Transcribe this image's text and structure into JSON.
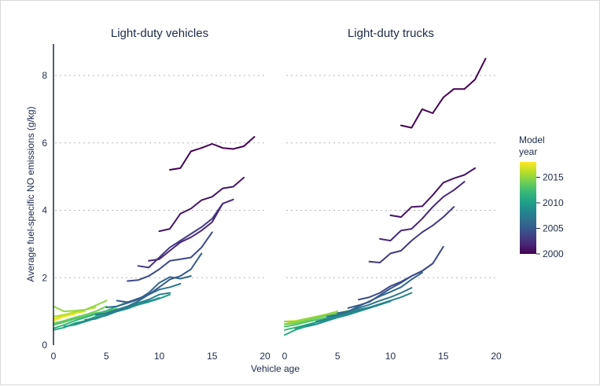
{
  "chart_data": {
    "type": "line",
    "ylabel": "Average fuel-specific NO emissions (g/kg)",
    "xlabel": "Vehicle age",
    "ylim": [
      0,
      9
    ],
    "y_ticks": [
      0,
      2,
      4,
      6,
      8
    ],
    "y_tick_labels": [
      "0",
      "2",
      "4",
      "6",
      "8"
    ],
    "grid": "horizontal dotted",
    "color_legend": {
      "title_line1": "Model",
      "title_line2": "year",
      "range": [
        2000,
        2018
      ],
      "ticks": [
        2015,
        2010,
        2005,
        2000
      ],
      "tick_labels": [
        "2015",
        "2010",
        "2005",
        "2000"
      ],
      "placement": "right",
      "colors": [
        "#440154",
        "#482878",
        "#3e4989",
        "#31688e",
        "#26828e",
        "#1f9e89",
        "#35b779",
        "#6ece58",
        "#b5de2b",
        "#fde725"
      ]
    },
    "panels": [
      {
        "title": "Light-duty vehicles",
        "xlim": [
          0,
          20
        ],
        "x_ticks": [
          0,
          5,
          10,
          15,
          20
        ],
        "x_tick_labels": [
          "0",
          "5",
          "10",
          "15",
          "20"
        ],
        "series": [
          {
            "model_year": 2000,
            "x": [
              11,
              12,
              13,
              14,
              15,
              16,
              17,
              18,
              19
            ],
            "y": [
              5.2,
              5.25,
              5.75,
              5.85,
              5.97,
              5.85,
              5.82,
              5.9,
              6.18
            ]
          },
          {
            "model_year": 2001,
            "x": [
              10,
              11,
              12,
              13,
              14,
              15,
              16,
              17,
              18
            ],
            "y": [
              3.38,
              3.45,
              3.9,
              4.05,
              4.3,
              4.4,
              4.65,
              4.7,
              4.97
            ]
          },
          {
            "model_year": 2002,
            "x": [
              9,
              10,
              11,
              12,
              13,
              14,
              15,
              16,
              17
            ],
            "y": [
              2.5,
              2.55,
              2.8,
              3.05,
              3.2,
              3.4,
              3.65,
              4.2,
              4.32
            ]
          },
          {
            "model_year": 2003,
            "x": [
              8,
              9,
              10,
              11,
              12,
              13,
              14,
              15,
              16
            ],
            "y": [
              2.35,
              2.3,
              2.6,
              2.9,
              3.1,
              3.3,
              3.5,
              3.75,
              4.2
            ]
          },
          {
            "model_year": 2004,
            "x": [
              7,
              8,
              9,
              10,
              11,
              12,
              13,
              14,
              15
            ],
            "y": [
              1.9,
              1.93,
              2.05,
              2.25,
              2.5,
              2.55,
              2.6,
              2.9,
              3.35
            ]
          },
          {
            "model_year": 2005,
            "x": [
              6,
              7,
              8,
              9,
              10,
              11,
              12,
              13,
              14
            ],
            "y": [
              1.32,
              1.27,
              1.38,
              1.5,
              1.72,
              1.95,
              2.05,
              2.25,
              2.72
            ]
          },
          {
            "model_year": 2006,
            "x": [
              5,
              6,
              7,
              8,
              9,
              10,
              11,
              12,
              13
            ],
            "y": [
              1.12,
              1.15,
              1.25,
              1.35,
              1.55,
              1.85,
              2.02,
              1.97,
              2.05
            ]
          },
          {
            "model_year": 2007,
            "x": [
              4,
              5,
              6,
              7,
              8,
              9,
              10,
              11,
              12
            ],
            "y": [
              0.9,
              0.95,
              1.05,
              1.15,
              1.3,
              1.5,
              1.65,
              1.72,
              1.82
            ]
          },
          {
            "model_year": 2008,
            "x": [
              3,
              4,
              5,
              6,
              7,
              8,
              9,
              10,
              11
            ],
            "y": [
              0.75,
              0.78,
              0.9,
              1.0,
              1.12,
              1.25,
              1.35,
              1.5,
              1.55
            ]
          },
          {
            "model_year": 2009,
            "x": [
              2,
              3,
              4,
              5,
              6,
              7,
              8,
              9,
              10
            ],
            "y": [
              0.62,
              0.7,
              0.8,
              0.9,
              1.0,
              1.1,
              1.2,
              1.3,
              1.4
            ]
          },
          {
            "model_year": 2010,
            "x": [
              1,
              2,
              3,
              4,
              5,
              6,
              7,
              8,
              9,
              10,
              11
            ],
            "y": [
              0.55,
              0.6,
              0.7,
              0.8,
              0.88,
              1.0,
              1.08,
              1.2,
              1.28,
              1.38,
              1.5
            ]
          },
          {
            "model_year": 2011,
            "x": [
              0,
              1,
              2,
              3,
              4,
              5,
              6,
              7,
              8,
              9
            ],
            "y": [
              0.45,
              0.52,
              0.65,
              0.72,
              0.85,
              0.95,
              1.05,
              1.12,
              1.2,
              1.35
            ]
          },
          {
            "model_year": 2012,
            "x": [
              0,
              1,
              2,
              3,
              4,
              5,
              6,
              7
            ],
            "y": [
              0.5,
              0.6,
              0.72,
              0.82,
              0.92,
              1.02,
              1.15,
              1.28
            ]
          },
          {
            "model_year": 2013,
            "x": [
              0,
              1,
              2,
              3,
              4,
              5,
              6
            ],
            "y": [
              0.6,
              0.68,
              0.78,
              0.85,
              0.95,
              1.0,
              1.08
            ]
          },
          {
            "model_year": 2014,
            "x": [
              0,
              1,
              2,
              3,
              4,
              5
            ],
            "y": [
              0.65,
              0.72,
              0.82,
              0.9,
              1.0,
              1.15
            ]
          },
          {
            "model_year": 2015,
            "x": [
              0,
              1,
              2,
              3,
              4,
              5
            ],
            "y": [
              1.15,
              1.0,
              1.02,
              1.05,
              1.18,
              1.32
            ]
          },
          {
            "model_year": 2016,
            "x": [
              0,
              1,
              2,
              3,
              4
            ],
            "y": [
              0.85,
              0.9,
              0.98,
              1.05,
              1.12
            ]
          },
          {
            "model_year": 2017,
            "x": [
              0,
              1,
              2,
              3
            ],
            "y": [
              0.78,
              0.88,
              0.95,
              1.0
            ]
          },
          {
            "model_year": 2018,
            "x": [
              0,
              1,
              2
            ],
            "y": [
              0.72,
              0.85,
              0.92
            ]
          }
        ]
      },
      {
        "title": "Light-duty trucks",
        "xlim": [
          0,
          20
        ],
        "x_ticks": [
          0,
          5,
          10,
          15,
          20
        ],
        "x_tick_labels": [
          "0",
          "5",
          "10",
          "15",
          "20"
        ],
        "series": [
          {
            "model_year": 2000,
            "x": [
              11,
              12,
              13,
              14,
              15,
              16,
              17,
              18,
              19
            ],
            "y": [
              6.52,
              6.45,
              7.0,
              6.88,
              7.35,
              7.6,
              7.6,
              7.88,
              8.5
            ]
          },
          {
            "model_year": 2001,
            "x": [
              10,
              11,
              12,
              13,
              14,
              15,
              16,
              17,
              18
            ],
            "y": [
              3.85,
              3.8,
              4.1,
              4.12,
              4.45,
              4.82,
              4.95,
              5.05,
              5.25
            ]
          },
          {
            "model_year": 2002,
            "x": [
              9,
              10,
              11,
              12,
              13,
              14,
              15,
              16,
              17
            ],
            "y": [
              3.15,
              3.1,
              3.4,
              3.45,
              3.75,
              4.1,
              4.4,
              4.6,
              4.85
            ]
          },
          {
            "model_year": 2003,
            "x": [
              8,
              9,
              10,
              11,
              12,
              13,
              14,
              15,
              16
            ],
            "y": [
              2.48,
              2.45,
              2.72,
              2.8,
              3.1,
              3.35,
              3.55,
              3.8,
              4.1
            ]
          },
          {
            "model_year": 2004,
            "x": [
              7,
              8,
              9,
              10,
              11,
              12,
              13,
              14,
              15
            ],
            "y": [
              1.35,
              1.42,
              1.55,
              1.75,
              1.88,
              2.05,
              2.2,
              2.42,
              2.92
            ]
          },
          {
            "model_year": 2005,
            "x": [
              6,
              7,
              8,
              9,
              10,
              11,
              12,
              13,
              14
            ],
            "y": [
              1.1,
              1.18,
              1.28,
              1.48,
              1.68,
              1.85,
              2.05,
              2.2,
              2.42
            ]
          },
          {
            "model_year": 2006,
            "x": [
              5,
              6,
              7,
              8,
              9,
              10,
              11,
              12,
              13
            ],
            "y": [
              0.95,
              1.0,
              1.15,
              1.3,
              1.45,
              1.58,
              1.72,
              1.95,
              2.15
            ]
          },
          {
            "model_year": 2007,
            "x": [
              4,
              5,
              6,
              7,
              8,
              9,
              10,
              11,
              12
            ],
            "y": [
              0.85,
              0.9,
              1.0,
              1.1,
              1.2,
              1.32,
              1.42,
              1.55,
              1.7
            ]
          },
          {
            "model_year": 2008,
            "x": [
              3,
              4,
              5,
              6,
              7,
              8,
              9,
              10,
              11,
              12
            ],
            "y": [
              0.7,
              0.78,
              0.88,
              0.95,
              1.05,
              1.12,
              1.22,
              1.32,
              1.42,
              1.55
            ]
          },
          {
            "model_year": 2009,
            "x": [
              2,
              3,
              4,
              5,
              6,
              7,
              8,
              9,
              10
            ],
            "y": [
              0.55,
              0.62,
              0.72,
              0.82,
              0.9,
              1.0,
              1.1,
              1.2,
              1.32
            ]
          },
          {
            "model_year": 2010,
            "x": [
              1,
              2,
              3,
              4,
              5,
              6,
              7,
              8,
              9,
              10
            ],
            "y": [
              0.5,
              0.58,
              0.68,
              0.75,
              0.82,
              0.92,
              1.0,
              1.1,
              1.2,
              1.3
            ]
          },
          {
            "model_year": 2011,
            "x": [
              0,
              1,
              2,
              3,
              4,
              5,
              6,
              7,
              8,
              9
            ],
            "y": [
              0.3,
              0.45,
              0.55,
              0.62,
              0.72,
              0.82,
              0.9,
              1.0,
              1.1,
              1.2
            ]
          },
          {
            "model_year": 2012,
            "x": [
              0,
              1,
              2,
              3,
              4,
              5,
              6,
              7,
              8
            ],
            "y": [
              0.45,
              0.52,
              0.6,
              0.68,
              0.78,
              0.85,
              0.92,
              1.02,
              1.12
            ]
          },
          {
            "model_year": 2013,
            "x": [
              0,
              1,
              2,
              3,
              4,
              5,
              6,
              7
            ],
            "y": [
              0.55,
              0.6,
              0.68,
              0.75,
              0.82,
              0.9,
              0.98,
              1.05
            ]
          },
          {
            "model_year": 2014,
            "x": [
              0,
              1,
              2,
              3,
              4,
              5,
              6
            ],
            "y": [
              0.62,
              0.65,
              0.72,
              0.8,
              0.88,
              0.95,
              1.02
            ]
          },
          {
            "model_year": 2015,
            "x": [
              0,
              1,
              2,
              3,
              4,
              5
            ],
            "y": [
              0.7,
              0.7,
              0.78,
              0.85,
              0.92,
              1.0
            ]
          },
          {
            "model_year": 2016,
            "x": [
              0,
              1,
              2,
              3,
              4
            ],
            "y": [
              0.62,
              0.68,
              0.75,
              0.82,
              0.9
            ]
          },
          {
            "model_year": 2017,
            "x": [
              0,
              1,
              2,
              3
            ],
            "y": [
              0.7,
              0.72,
              0.78,
              0.85
            ]
          },
          {
            "model_year": 2018,
            "x": [
              0,
              1,
              2
            ],
            "y": [
              0.62,
              0.7,
              0.78
            ]
          }
        ]
      }
    ]
  }
}
